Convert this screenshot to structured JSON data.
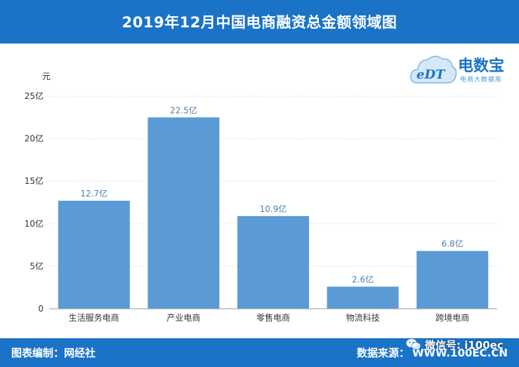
{
  "header": {
    "title": "2019年12月中国电商融资总金额领域图"
  },
  "logo": {
    "mark": "eDT",
    "brand": "电数宝",
    "tagline": "电商大数据库",
    "icon": "cloud-logo-icon"
  },
  "footer": {
    "left": "图表编制：网经社",
    "source_label": "数据来源：",
    "source_value": "WWW.100EC.CN",
    "wechat_label": "微信号: i100ec",
    "wechat_icon": "wechat-icon"
  },
  "colors": {
    "accent": "#1a73c6",
    "bar": "#5b9bd5",
    "label": "#4a7fb5"
  },
  "chart_data": {
    "type": "bar",
    "ylabel": "元",
    "categories": [
      "生活服务电商",
      "产业电商",
      "零售电商",
      "物流科技",
      "跨境电商"
    ],
    "values": [
      12.7,
      22.5,
      10.9,
      2.6,
      6.8
    ],
    "data_labels": [
      "12.7亿",
      "22.5亿",
      "10.9亿",
      "2.6亿",
      "6.8亿"
    ],
    "yticks": [
      0,
      5,
      10,
      15,
      20,
      25
    ],
    "ytick_labels": [
      "0",
      "5亿",
      "10亿",
      "15亿",
      "20亿",
      "25亿"
    ],
    "ylim": [
      0,
      25
    ],
    "grid": true
  }
}
